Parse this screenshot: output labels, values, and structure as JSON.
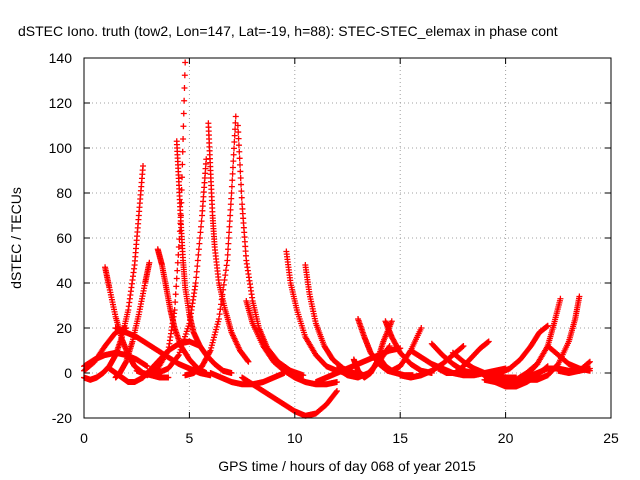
{
  "chart_data": {
    "type": "scatter",
    "title": "dSTEC Iono. truth (tow2, Lon=147, Lat=-19, h=88): STEC-STEC_elemax in phase cont",
    "xlabel": "GPS time / hours of day 068 of year 2015",
    "ylabel": "dSTEC  / TECUs",
    "xlim": [
      0,
      25
    ],
    "ylim": [
      -20,
      140
    ],
    "x_ticks": [
      0,
      5,
      10,
      15,
      20,
      25
    ],
    "y_ticks": [
      -20,
      0,
      20,
      40,
      60,
      80,
      100,
      120,
      140
    ],
    "x_tick_labels": [
      "0",
      "5",
      "10",
      "15",
      "20",
      "25"
    ],
    "y_tick_labels": [
      "-20",
      "0",
      "20",
      "40",
      "60",
      "80",
      "100",
      "120",
      "140"
    ],
    "grid": true,
    "marker": "plus",
    "color": "#ff0000",
    "series": [
      {
        "x": [
          0.0,
          0.3,
          0.6,
          0.9,
          1.2,
          1.5,
          1.8,
          2.1,
          2.4,
          2.6,
          2.8
        ],
        "y": [
          -2,
          -3,
          -2,
          0,
          3,
          8,
          16,
          28,
          48,
          70,
          92
        ]
      },
      {
        "x": [
          1.0,
          1.2,
          1.5,
          1.8,
          2.1,
          2.4,
          2.8,
          3.2,
          3.6,
          4.0
        ],
        "y": [
          47,
          38,
          25,
          15,
          8,
          3,
          0,
          -1,
          -2,
          -2
        ]
      },
      {
        "x": [
          1.5,
          1.7,
          2.0,
          2.3,
          2.6,
          2.9,
          3.1
        ],
        "y": [
          -2,
          0,
          5,
          14,
          26,
          40,
          49
        ]
      },
      {
        "x": [
          0.0,
          0.5,
          1.0,
          1.5,
          2.0,
          2.5,
          3.0
        ],
        "y": [
          3,
          6,
          8,
          9,
          8,
          6,
          3
        ]
      },
      {
        "x": [
          0.0,
          0.5,
          1.0,
          1.5,
          2.0
        ],
        "y": [
          1,
          5,
          12,
          18,
          20
        ]
      },
      {
        "x": [
          1.2,
          1.5,
          1.8,
          2.1,
          2.4,
          2.8,
          3.2,
          3.6,
          4.0,
          4.5,
          5.0,
          5.5
        ],
        "y": [
          2,
          0,
          -2,
          -4,
          -4,
          -2,
          2,
          6,
          10,
          13,
          14,
          12
        ]
      },
      {
        "x": [
          1.5,
          2.0,
          2.5,
          3.0,
          3.5,
          4.0,
          4.5,
          5.0,
          5.5,
          6.0
        ],
        "y": [
          20,
          18,
          16,
          13,
          10,
          7,
          4,
          2,
          0,
          -1
        ]
      },
      {
        "x": [
          2.5,
          3.0,
          3.5,
          4.0,
          4.3,
          4.6,
          4.8
        ],
        "y": [
          1,
          -1,
          2,
          10,
          28,
          70,
          138
        ]
      },
      {
        "x": [
          3.5,
          3.7,
          3.9,
          4.1,
          4.3,
          4.6,
          5.0,
          5.4,
          5.8
        ],
        "y": [
          55,
          48,
          38,
          28,
          20,
          12,
          6,
          2,
          0
        ]
      },
      {
        "x": [
          4.4,
          4.5,
          4.6,
          4.7,
          4.8,
          5.0,
          5.2,
          5.5,
          5.8,
          6.2,
          6.6,
          7.0
        ],
        "y": [
          103,
          85,
          66,
          50,
          38,
          26,
          18,
          12,
          8,
          4,
          1,
          0
        ]
      },
      {
        "x": [
          3.0,
          3.5,
          4.0,
          4.5,
          5.0,
          5.3,
          5.6,
          5.8
        ],
        "y": [
          0,
          0,
          2,
          8,
          22,
          40,
          70,
          95
        ]
      },
      {
        "x": [
          5.9,
          6.0,
          6.1,
          6.2,
          6.4,
          6.7,
          7.0,
          7.4,
          7.8
        ],
        "y": [
          111,
          90,
          70,
          56,
          40,
          28,
          18,
          10,
          5
        ]
      },
      {
        "x": [
          4.8,
          5.2,
          5.6,
          6.0,
          6.4,
          6.8,
          7.0,
          7.2
        ],
        "y": [
          -1,
          0,
          3,
          10,
          24,
          50,
          80,
          114
        ]
      },
      {
        "x": [
          7.3,
          7.5,
          7.7,
          8.0,
          8.3,
          8.7,
          9.2,
          9.8,
          10.4
        ],
        "y": [
          110,
          75,
          50,
          32,
          20,
          11,
          5,
          1,
          -1
        ]
      },
      {
        "x": [
          6.0,
          6.5,
          7.0,
          7.5,
          8.0,
          8.5,
          9.0,
          9.5
        ],
        "y": [
          0,
          -2,
          -4,
          -5,
          -5,
          -4,
          -2,
          0
        ]
      },
      {
        "x": [
          7.5,
          8.0,
          8.5,
          9.0,
          9.5,
          10.0,
          10.5,
          11.0,
          11.5,
          12.0
        ],
        "y": [
          -2,
          -5,
          -8,
          -11,
          -14,
          -17,
          -19,
          -18,
          -14,
          -8
        ]
      },
      {
        "x": [
          7.7,
          8.0,
          8.5,
          9.0,
          9.5,
          10.0,
          10.5,
          11.0,
          11.5,
          12.0
        ],
        "y": [
          32,
          22,
          12,
          5,
          1,
          -2,
          -4,
          -5,
          -5,
          -4
        ]
      },
      {
        "x": [
          9.6,
          9.8,
          10.1,
          10.5,
          11.0,
          11.5,
          12.0,
          12.5
        ],
        "y": [
          54,
          40,
          28,
          16,
          8,
          3,
          1,
          0
        ]
      },
      {
        "x": [
          10.5,
          10.7,
          11.0,
          11.4,
          11.8,
          12.3,
          12.8,
          13.3
        ],
        "y": [
          48,
          35,
          22,
          12,
          6,
          2,
          0,
          -1
        ]
      },
      {
        "x": [
          11.0,
          11.5,
          12.0,
          12.5,
          13.0,
          13.5,
          14.0,
          14.5,
          15.0
        ],
        "y": [
          -4,
          -2,
          0,
          2,
          4,
          6,
          8,
          10,
          11
        ]
      },
      {
        "x": [
          12.0,
          12.5,
          13.0,
          13.5,
          14.0,
          14.5
        ],
        "y": [
          2,
          -1,
          -2,
          0,
          5,
          12
        ]
      },
      {
        "x": [
          12.8,
          13.0,
          13.3,
          13.6,
          13.9,
          14.2,
          14.6
        ],
        "y": [
          6,
          1,
          -2,
          0,
          5,
          14,
          23
        ]
      },
      {
        "x": [
          13.0,
          13.3,
          13.6,
          14.0,
          14.4,
          14.8,
          15.2,
          15.6
        ],
        "y": [
          24,
          16,
          9,
          4,
          1,
          0,
          -1,
          -1
        ]
      },
      {
        "x": [
          14.0,
          14.3,
          14.6,
          15.0,
          15.5,
          16.0
        ],
        "y": [
          7,
          3,
          1,
          3,
          10,
          20
        ]
      },
      {
        "x": [
          14.3,
          14.6,
          15.0,
          15.5,
          16.0,
          16.5
        ],
        "y": [
          23,
          16,
          9,
          4,
          1,
          0
        ]
      },
      {
        "x": [
          15.0,
          15.5,
          16.0,
          16.5,
          17.0,
          17.5,
          18.0
        ],
        "y": [
          -1,
          -2,
          -1,
          1,
          4,
          8,
          12
        ]
      },
      {
        "x": [
          15.5,
          16.0,
          16.5,
          17.0,
          17.5,
          18.0,
          18.5,
          19.0
        ],
        "y": [
          10,
          7,
          4,
          2,
          0,
          -1,
          -1,
          0
        ]
      },
      {
        "x": [
          16.5,
          17.0,
          17.5,
          18.0,
          18.5,
          19.0,
          19.5,
          20.0
        ],
        "y": [
          13,
          8,
          4,
          1,
          0,
          0,
          1,
          2
        ]
      },
      {
        "x": [
          16.8,
          17.2,
          17.6,
          18.0,
          18.4,
          18.8,
          19.2
        ],
        "y": [
          2,
          0,
          0,
          3,
          7,
          11,
          14
        ]
      },
      {
        "x": [
          17.5,
          18.0,
          18.5,
          19.0,
          19.5,
          20.0,
          20.5
        ],
        "y": [
          9,
          5,
          2,
          0,
          -1,
          -2,
          -2
        ]
      },
      {
        "x": [
          18.5,
          19.0,
          19.5,
          20.0,
          20.5,
          21.0,
          21.5
        ],
        "y": [
          2,
          -1,
          -3,
          -4,
          -3,
          0,
          4
        ]
      },
      {
        "x": [
          19.0,
          19.5,
          20.0,
          20.5,
          21.0,
          21.5,
          22.0
        ],
        "y": [
          -3,
          -4,
          -6,
          -6,
          -4,
          -1,
          3
        ]
      },
      {
        "x": [
          19.2,
          19.7,
          20.2,
          20.7,
          21.2,
          21.6,
          22.0
        ],
        "y": [
          -1,
          0,
          2,
          6,
          12,
          18,
          21
        ]
      },
      {
        "x": [
          19.5,
          20.0,
          20.5,
          21.0,
          21.5,
          22.0,
          22.3,
          22.6
        ],
        "y": [
          -4,
          -5,
          -4,
          -1,
          4,
          12,
          22,
          33
        ]
      },
      {
        "x": [
          20.0,
          20.5,
          21.0,
          21.5,
          22.0,
          22.5,
          23.0,
          23.5,
          24.0
        ],
        "y": [
          -4,
          -4,
          -2,
          0,
          2,
          2,
          1,
          1,
          2
        ]
      },
      {
        "x": [
          21.0,
          21.5,
          22.0,
          22.5,
          23.0,
          23.3,
          23.5
        ],
        "y": [
          -3,
          -3,
          -1,
          4,
          14,
          24,
          34
        ]
      },
      {
        "x": [
          22.0,
          22.5,
          23.0,
          23.5,
          24.0
        ],
        "y": [
          12,
          8,
          4,
          2,
          1
        ]
      },
      {
        "x": [
          22.5,
          23.0,
          23.5,
          24.0
        ],
        "y": [
          1,
          0,
          1,
          5
        ]
      }
    ]
  }
}
